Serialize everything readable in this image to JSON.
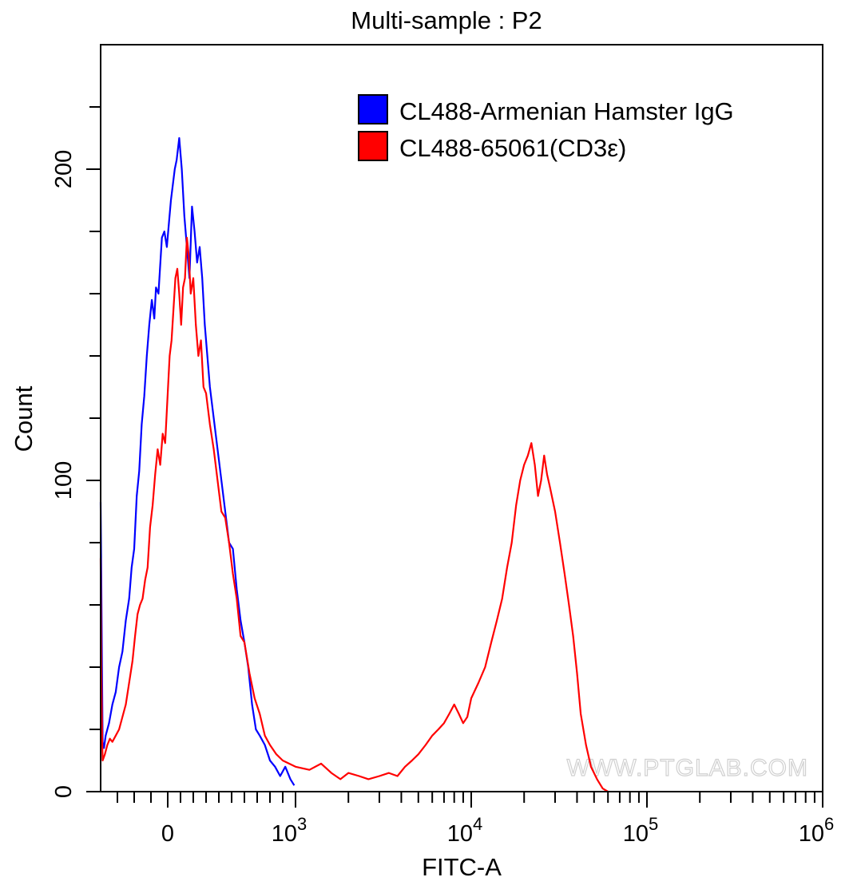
{
  "chart_data": {
    "type": "line",
    "title": "Multi-sample : P2",
    "xlabel": "FITC-A",
    "ylabel": "Count",
    "x_scale": "biexponential",
    "xlim": [
      -400,
      1000000
    ],
    "ylim": [
      0,
      240
    ],
    "x_ticks": [
      {
        "value": 0,
        "label": "0"
      },
      {
        "value": 1000,
        "label": "10",
        "exp": "3"
      },
      {
        "value": 10000,
        "label": "10",
        "exp": "4"
      },
      {
        "value": 100000,
        "label": "10",
        "exp": "5"
      },
      {
        "value": 1000000,
        "label": "10",
        "exp": "6"
      }
    ],
    "y_ticks": [
      {
        "value": 0,
        "label": "0"
      },
      {
        "value": 100,
        "label": "100"
      },
      {
        "value": 200,
        "label": "200"
      }
    ],
    "legend_position": "top-right",
    "series": [
      {
        "name": "CL488-Armenian Hamster IgG",
        "color": "#0000ff",
        "points": [
          [
            -400,
            93
          ],
          [
            -396,
            70
          ],
          [
            -392,
            40
          ],
          [
            -388,
            16
          ],
          [
            -380,
            14
          ],
          [
            -370,
            18
          ],
          [
            -350,
            22
          ],
          [
            -330,
            28
          ],
          [
            -310,
            32
          ],
          [
            -290,
            40
          ],
          [
            -270,
            45
          ],
          [
            -250,
            55
          ],
          [
            -230,
            62
          ],
          [
            -215,
            72
          ],
          [
            -200,
            78
          ],
          [
            -185,
            95
          ],
          [
            -170,
            103
          ],
          [
            -155,
            118
          ],
          [
            -140,
            127
          ],
          [
            -125,
            140
          ],
          [
            -110,
            150
          ],
          [
            -95,
            158
          ],
          [
            -80,
            152
          ],
          [
            -70,
            162
          ],
          [
            -55,
            160
          ],
          [
            -35,
            178
          ],
          [
            -20,
            180
          ],
          [
            -5,
            175
          ],
          [
            10,
            183
          ],
          [
            25,
            190
          ],
          [
            40,
            195
          ],
          [
            55,
            200
          ],
          [
            70,
            203
          ],
          [
            90,
            210
          ],
          [
            110,
            200
          ],
          [
            130,
            185
          ],
          [
            150,
            175
          ],
          [
            170,
            165
          ],
          [
            190,
            188
          ],
          [
            210,
            180
          ],
          [
            230,
            170
          ],
          [
            250,
            175
          ],
          [
            270,
            165
          ],
          [
            290,
            150
          ],
          [
            310,
            140
          ],
          [
            330,
            130
          ],
          [
            360,
            120
          ],
          [
            390,
            110
          ],
          [
            420,
            100
          ],
          [
            450,
            90
          ],
          [
            480,
            80
          ],
          [
            510,
            78
          ],
          [
            540,
            65
          ],
          [
            570,
            55
          ],
          [
            600,
            48
          ],
          [
            630,
            40
          ],
          [
            660,
            28
          ],
          [
            690,
            20
          ],
          [
            720,
            18
          ],
          [
            760,
            15
          ],
          [
            800,
            10
          ],
          [
            840,
            8
          ],
          [
            880,
            5
          ],
          [
            920,
            8
          ],
          [
            960,
            4
          ],
          [
            990,
            2
          ]
        ]
      },
      {
        "name": "CL488-65061(CD3ε)",
        "color": "#ff0000",
        "points": [
          [
            -400,
            75
          ],
          [
            -396,
            40
          ],
          [
            -392,
            20
          ],
          [
            -388,
            10
          ],
          [
            -375,
            12
          ],
          [
            -360,
            15
          ],
          [
            -345,
            17
          ],
          [
            -330,
            16
          ],
          [
            -310,
            18
          ],
          [
            -290,
            20
          ],
          [
            -270,
            24
          ],
          [
            -250,
            28
          ],
          [
            -230,
            35
          ],
          [
            -210,
            42
          ],
          [
            -195,
            50
          ],
          [
            -180,
            57
          ],
          [
            -165,
            60
          ],
          [
            -150,
            62
          ],
          [
            -135,
            68
          ],
          [
            -120,
            72
          ],
          [
            -105,
            85
          ],
          [
            -90,
            92
          ],
          [
            -75,
            102
          ],
          [
            -60,
            110
          ],
          [
            -45,
            105
          ],
          [
            -30,
            115
          ],
          [
            -15,
            112
          ],
          [
            0,
            128
          ],
          [
            15,
            140
          ],
          [
            30,
            145
          ],
          [
            45,
            155
          ],
          [
            60,
            165
          ],
          [
            75,
            168
          ],
          [
            90,
            160
          ],
          [
            105,
            150
          ],
          [
            120,
            162
          ],
          [
            135,
            165
          ],
          [
            150,
            178
          ],
          [
            165,
            172
          ],
          [
            180,
            160
          ],
          [
            200,
            165
          ],
          [
            220,
            150
          ],
          [
            240,
            140
          ],
          [
            260,
            145
          ],
          [
            280,
            130
          ],
          [
            300,
            128
          ],
          [
            330,
            118
          ],
          [
            360,
            110
          ],
          [
            390,
            100
          ],
          [
            420,
            90
          ],
          [
            450,
            88
          ],
          [
            480,
            80
          ],
          [
            510,
            70
          ],
          [
            540,
            62
          ],
          [
            570,
            50
          ],
          [
            600,
            48
          ],
          [
            640,
            38
          ],
          [
            680,
            30
          ],
          [
            720,
            25
          ],
          [
            760,
            18
          ],
          [
            800,
            15
          ],
          [
            850,
            12
          ],
          [
            900,
            10
          ],
          [
            950,
            9
          ],
          [
            1000,
            8
          ],
          [
            1200,
            7
          ],
          [
            1400,
            9
          ],
          [
            1600,
            6
          ],
          [
            1800,
            4
          ],
          [
            2000,
            6
          ],
          [
            2300,
            5
          ],
          [
            2600,
            4
          ],
          [
            3000,
            5
          ],
          [
            3400,
            6
          ],
          [
            3800,
            5
          ],
          [
            4200,
            8
          ],
          [
            4600,
            10
          ],
          [
            5000,
            12
          ],
          [
            5500,
            15
          ],
          [
            6000,
            18
          ],
          [
            6500,
            20
          ],
          [
            7000,
            22
          ],
          [
            7500,
            25
          ],
          [
            8000,
            28
          ],
          [
            8500,
            25
          ],
          [
            9000,
            22
          ],
          [
            9500,
            24
          ],
          [
            10000,
            30
          ],
          [
            11000,
            35
          ],
          [
            12000,
            40
          ],
          [
            13000,
            48
          ],
          [
            14000,
            55
          ],
          [
            15000,
            62
          ],
          [
            16000,
            72
          ],
          [
            17000,
            80
          ],
          [
            18000,
            92
          ],
          [
            19000,
            100
          ],
          [
            20000,
            105
          ],
          [
            21000,
            108
          ],
          [
            22000,
            112
          ],
          [
            23000,
            105
          ],
          [
            24000,
            95
          ],
          [
            25000,
            100
          ],
          [
            26000,
            108
          ],
          [
            27000,
            102
          ],
          [
            28000,
            98
          ],
          [
            30000,
            90
          ],
          [
            32000,
            80
          ],
          [
            34000,
            70
          ],
          [
            36000,
            60
          ],
          [
            38000,
            50
          ],
          [
            40000,
            38
          ],
          [
            42000,
            25
          ],
          [
            45000,
            15
          ],
          [
            48000,
            8
          ],
          [
            52000,
            4
          ],
          [
            56000,
            1
          ],
          [
            60000,
            0
          ]
        ]
      }
    ]
  },
  "watermark": "WWW.PTGLAB.COM"
}
